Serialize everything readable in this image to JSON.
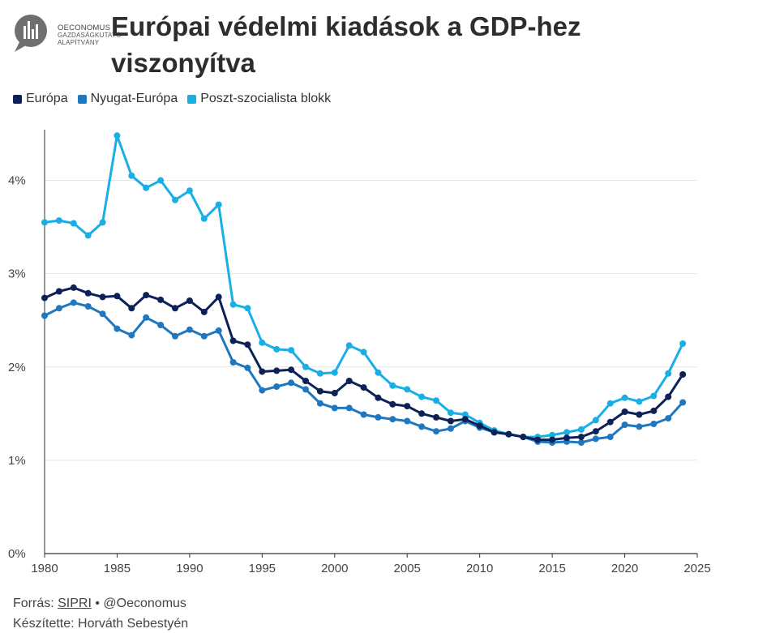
{
  "logo": {
    "lines": [
      "OECONOMUS",
      "GAZDASÁGKUTATÓ",
      "ALAPÍTVÁNY"
    ]
  },
  "header": {
    "title": "Európai védelmi kiadások a GDP-hez viszonyítva"
  },
  "footer": {
    "source_prefix": "Forrás: ",
    "source_link": "SIPRI",
    "source_suffix": " • @Oeconomus",
    "author": "Készítette: Horváth Sebestyén"
  },
  "colors": {
    "europa": "#0d2157",
    "nyugat": "#1f78bf",
    "poszt": "#18aee6",
    "grid": "#e6e6e6",
    "axis": "#333333"
  },
  "chart_data": {
    "type": "line",
    "title": "Európai védelmi kiadások a GDP-hez viszonyítva",
    "xlabel": "",
    "ylabel": "",
    "xlim": [
      1980,
      2025
    ],
    "ylim": [
      0,
      0.045
    ],
    "x_ticks": [
      1980,
      1985,
      1990,
      1995,
      2000,
      2005,
      2010,
      2015,
      2020,
      2025
    ],
    "x_tick_labels": [
      "1980",
      "1985",
      "1990",
      "1995",
      "2000",
      "2005",
      "2010",
      "2015",
      "2020",
      "2025"
    ],
    "y_ticks": [
      0,
      0.01,
      0.02,
      0.03,
      0.04
    ],
    "y_tick_labels": [
      "0%",
      "1%",
      "2%",
      "3%",
      "4%"
    ],
    "grid": true,
    "legend_position": "top-left",
    "x": [
      1980,
      1981,
      1982,
      1983,
      1984,
      1985,
      1986,
      1987,
      1988,
      1989,
      1990,
      1991,
      1992,
      1993,
      1994,
      1995,
      1996,
      1997,
      1998,
      1999,
      2000,
      2001,
      2002,
      2003,
      2004,
      2005,
      2006,
      2007,
      2008,
      2009,
      2010,
      2011,
      2012,
      2013,
      2014,
      2015,
      2016,
      2017,
      2018,
      2019,
      2020,
      2021,
      2022,
      2023,
      2024
    ],
    "series": [
      {
        "name": "Európa",
        "color_key": "europa",
        "values": [
          0.0274,
          0.0281,
          0.0285,
          0.0279,
          0.0275,
          0.0276,
          0.0263,
          0.0277,
          0.0272,
          0.0263,
          0.0271,
          0.0259,
          0.0275,
          0.0228,
          0.0224,
          0.0195,
          0.0196,
          0.0197,
          0.0185,
          0.0174,
          0.0172,
          0.0185,
          0.0178,
          0.0167,
          0.016,
          0.0158,
          0.015,
          0.0146,
          0.0142,
          0.0144,
          0.0137,
          0.013,
          0.0128,
          0.0125,
          0.0122,
          0.0122,
          0.0124,
          0.0125,
          0.0131,
          0.0141,
          0.0152,
          0.0149,
          0.0153,
          0.0168,
          0.0192
        ]
      },
      {
        "name": "Nyugat-Európa",
        "color_key": "nyugat",
        "values": [
          0.0255,
          0.0263,
          0.0269,
          0.0265,
          0.0257,
          0.0241,
          0.0234,
          0.0253,
          0.0245,
          0.0233,
          0.024,
          0.0233,
          0.0239,
          0.0205,
          0.0199,
          0.0175,
          0.0179,
          0.0183,
          0.0176,
          0.0161,
          0.0156,
          0.0156,
          0.0149,
          0.0146,
          0.0144,
          0.0142,
          0.0136,
          0.0131,
          0.0134,
          0.0142,
          0.0135,
          0.013,
          0.0128,
          0.0125,
          0.012,
          0.0119,
          0.012,
          0.0119,
          0.0123,
          0.0125,
          0.0138,
          0.0136,
          0.0139,
          0.0145,
          0.0162
        ]
      },
      {
        "name": "Poszt-szocialista blokk",
        "color_key": "poszt",
        "values": [
          0.0355,
          0.0357,
          0.0354,
          0.0341,
          0.0355,
          0.0448,
          0.0405,
          0.0392,
          0.04,
          0.0379,
          0.0389,
          0.0359,
          0.0374,
          0.0267,
          0.0263,
          0.0226,
          0.0219,
          0.0218,
          0.02,
          0.0193,
          0.0194,
          0.0223,
          0.0216,
          0.0194,
          0.018,
          0.0176,
          0.0168,
          0.0164,
          0.0151,
          0.0149,
          0.014,
          0.0132,
          0.0128,
          0.0125,
          0.0125,
          0.0127,
          0.013,
          0.0133,
          0.0143,
          0.0161,
          0.0167,
          0.0163,
          0.0169,
          0.0193,
          0.0225
        ]
      }
    ]
  }
}
